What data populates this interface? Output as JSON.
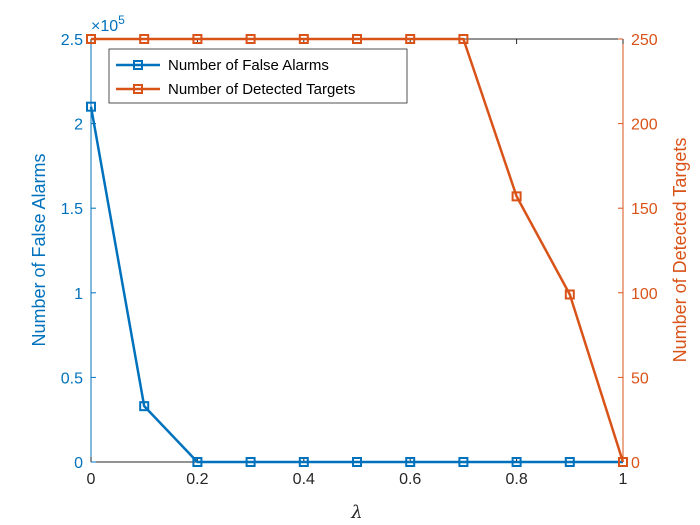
{
  "chart_data": {
    "type": "line",
    "x": [
      0,
      0.1,
      0.2,
      0.3,
      0.4,
      0.5,
      0.6,
      0.7,
      0.8,
      0.9,
      1
    ],
    "xlabel": "λ",
    "xlim": [
      0,
      1
    ],
    "xticks": [
      "0",
      "0.2",
      "0.4",
      "0.6",
      "0.8",
      "1"
    ],
    "series": [
      {
        "name": "Number of False Alarms",
        "axis": "left",
        "color": "#0072BD",
        "marker": "square",
        "values": [
          210000,
          33000,
          0,
          0,
          0,
          0,
          0,
          0,
          0,
          0,
          0
        ]
      },
      {
        "name": "Number of Detected Targets",
        "axis": "right",
        "color": "#D95319",
        "marker": "square",
        "values": [
          250,
          250,
          250,
          250,
          250,
          250,
          250,
          250,
          157,
          99,
          0
        ]
      }
    ],
    "y_left": {
      "label": "Number of False Alarms",
      "lim": [
        0,
        250000
      ],
      "exponent_label": "×10",
      "exponent": "5",
      "ticks": [
        {
          "value": 0,
          "label": "0"
        },
        {
          "value": 50000,
          "label": "0.5"
        },
        {
          "value": 100000,
          "label": "1"
        },
        {
          "value": 150000,
          "label": "1.5"
        },
        {
          "value": 200000,
          "label": "2"
        },
        {
          "value": 250000,
          "label": "2.5"
        }
      ]
    },
    "y_right": {
      "label": "Number of Detected Targets",
      "lim": [
        0,
        250
      ],
      "ticks": [
        {
          "value": 0,
          "label": "0"
        },
        {
          "value": 50,
          "label": "50"
        },
        {
          "value": 100,
          "label": "100"
        },
        {
          "value": 150,
          "label": "150"
        },
        {
          "value": 200,
          "label": "200"
        },
        {
          "value": 250,
          "label": "250"
        }
      ]
    },
    "grid": false,
    "legend_position": "top-left"
  }
}
